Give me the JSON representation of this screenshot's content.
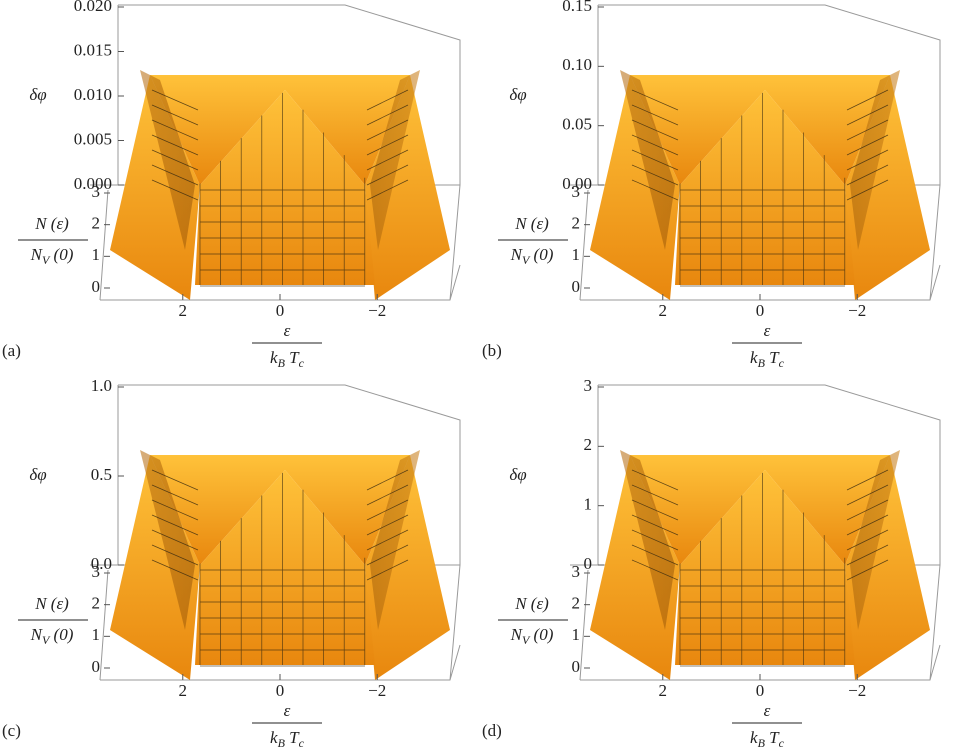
{
  "chart_data": [
    {
      "type": "surface3d",
      "panel_label": "(a)",
      "ylabel": "δφ",
      "y2label": {
        "numerator": "N (ε)",
        "denominator": [
          "N",
          "V",
          " (0)"
        ]
      },
      "xlabel": {
        "numerator": "ε",
        "denominator": [
          "k",
          "B",
          " T",
          "c"
        ]
      },
      "ylim": [
        0,
        0.02
      ],
      "yticks": [
        {
          "value": 0,
          "label": "0.000"
        },
        0.005,
        {
          "value": 0.01,
          "label": "0.010"
        },
        0.015,
        {
          "value": 0.02,
          "label": "0.020"
        }
      ],
      "y2lim": [
        0,
        3
      ],
      "y2ticks": [
        0,
        1,
        2,
        3
      ],
      "xlim": [
        3.6,
        -3.6
      ],
      "xticks": [
        2,
        0,
        {
          "value": -2,
          "label": "−2"
        }
      ],
      "color": "#f4a21c"
    },
    {
      "type": "surface3d",
      "panel_label": "(b)",
      "ylabel": "δφ",
      "y2label": {
        "numerator": "N (ε)",
        "denominator": [
          "N",
          "V",
          " (0)"
        ]
      },
      "xlabel": {
        "numerator": "ε",
        "denominator": [
          "k",
          "B",
          " T",
          "c"
        ]
      },
      "ylim": [
        0,
        0.15
      ],
      "yticks": [
        {
          "value": 0,
          "label": "0.00"
        },
        0.05,
        {
          "value": 0.1,
          "label": "0.10"
        },
        0.15
      ],
      "y2lim": [
        0,
        3
      ],
      "y2ticks": [
        0,
        1,
        2,
        3
      ],
      "xlim": [
        3.6,
        -3.6
      ],
      "xticks": [
        2,
        0,
        {
          "value": -2,
          "label": "−2"
        }
      ],
      "color": "#f4a21c"
    },
    {
      "type": "surface3d",
      "panel_label": "(c)",
      "ylabel": "δφ",
      "y2label": {
        "numerator": "N (ε)",
        "denominator": [
          "N",
          "V",
          " (0)"
        ]
      },
      "xlabel": {
        "numerator": "ε",
        "denominator": [
          "k",
          "B",
          " T",
          "c"
        ]
      },
      "ylim": [
        0,
        1
      ],
      "yticks": [
        {
          "value": 0,
          "label": "0.0"
        },
        0.5,
        {
          "value": 1,
          "label": "1.0"
        }
      ],
      "y2lim": [
        0,
        3
      ],
      "y2ticks": [
        0,
        1,
        2,
        3
      ],
      "xlim": [
        3.6,
        -3.6
      ],
      "xticks": [
        2,
        0,
        {
          "value": -2,
          "label": "−2"
        }
      ],
      "color": "#f4a21c"
    },
    {
      "type": "surface3d",
      "panel_label": "(d)",
      "ylabel": "δφ",
      "y2label": {
        "numerator": "N (ε)",
        "denominator": [
          "N",
          "V",
          " (0)"
        ]
      },
      "xlabel": {
        "numerator": "ε",
        "denominator": [
          "k",
          "B",
          " T",
          "c"
        ]
      },
      "ylim": [
        0,
        3
      ],
      "yticks": [
        0,
        1,
        2,
        3
      ],
      "y2lim": [
        0,
        3
      ],
      "y2ticks": [
        0,
        1,
        2,
        3
      ],
      "xlim": [
        3.6,
        -3.6
      ],
      "xticks": [
        2,
        0,
        {
          "value": -2,
          "label": "−2"
        }
      ],
      "color": "#f4a21c"
    }
  ]
}
